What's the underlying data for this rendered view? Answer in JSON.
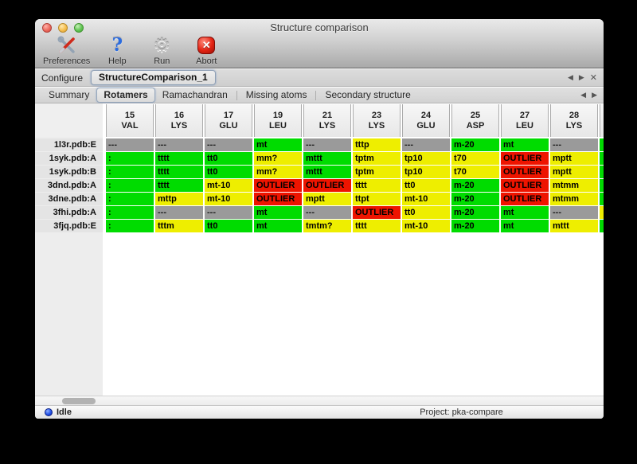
{
  "window": {
    "title": "Structure comparison"
  },
  "window_controls": [
    {
      "name": "close-button",
      "color": "red"
    },
    {
      "name": "minimize-button",
      "color": "yellow"
    },
    {
      "name": "zoom-button",
      "color": "green"
    }
  ],
  "toolbar": {
    "items": [
      {
        "label": "Preferences",
        "icon": "tools-icon"
      },
      {
        "label": "Help",
        "icon": "question-icon",
        "glyph": "?"
      },
      {
        "label": "Run",
        "icon": "gear-icon",
        "glyph": "⚙"
      },
      {
        "label": "Abort",
        "icon": "abort-icon",
        "glyph": "✕"
      }
    ]
  },
  "configure": {
    "label": "Configure",
    "value": "StructureComparison_1",
    "nav": {
      "prev": "◀",
      "next": "▶",
      "close": "✕"
    }
  },
  "tabs": {
    "items": [
      "Summary",
      "Rotamers",
      "Ramachandran",
      "Missing atoms",
      "Secondary structure"
    ],
    "active": "Rotamers",
    "nav": {
      "prev": "◀",
      "next": "▶"
    }
  },
  "table": {
    "columns": [
      {
        "num": "15",
        "res": "VAL"
      },
      {
        "num": "16",
        "res": "LYS"
      },
      {
        "num": "17",
        "res": "GLU"
      },
      {
        "num": "19",
        "res": "LEU"
      },
      {
        "num": "21",
        "res": "LYS"
      },
      {
        "num": "23",
        "res": "LYS"
      },
      {
        "num": "24",
        "res": "GLU"
      },
      {
        "num": "25",
        "res": "ASP"
      },
      {
        "num": "27",
        "res": "LEU"
      },
      {
        "num": "28",
        "res": "LYS"
      }
    ],
    "rows": [
      {
        "label": "1l3r.pdb:E",
        "cells": [
          {
            "t": "---",
            "s": "gray"
          },
          {
            "t": "---",
            "s": "gray"
          },
          {
            "t": "---",
            "s": "gray"
          },
          {
            "t": "mt",
            "s": "green"
          },
          {
            "t": "---",
            "s": "gray"
          },
          {
            "t": "tttp",
            "s": "yellow"
          },
          {
            "t": "---",
            "s": "gray"
          },
          {
            "t": "m-20",
            "s": "green"
          },
          {
            "t": "mt",
            "s": "green"
          },
          {
            "t": "---",
            "s": "gray"
          }
        ],
        "partial": "green"
      },
      {
        "label": "1syk.pdb:A",
        "cells": [
          {
            "t": ":",
            "s": "green"
          },
          {
            "t": "tttt",
            "s": "green"
          },
          {
            "t": "tt0",
            "s": "green"
          },
          {
            "t": "mm?",
            "s": "yellow"
          },
          {
            "t": "mttt",
            "s": "green"
          },
          {
            "t": "tptm",
            "s": "yellow"
          },
          {
            "t": "tp10",
            "s": "yellow"
          },
          {
            "t": "t70",
            "s": "yellow"
          },
          {
            "t": "OUTLIER",
            "s": "red"
          },
          {
            "t": "mptt",
            "s": "yellow"
          }
        ],
        "partial": "green"
      },
      {
        "label": "1syk.pdb:B",
        "cells": [
          {
            "t": ":",
            "s": "green"
          },
          {
            "t": "tttt",
            "s": "green"
          },
          {
            "t": "tt0",
            "s": "green"
          },
          {
            "t": "mm?",
            "s": "yellow"
          },
          {
            "t": "mttt",
            "s": "green"
          },
          {
            "t": "tptm",
            "s": "yellow"
          },
          {
            "t": "tp10",
            "s": "yellow"
          },
          {
            "t": "t70",
            "s": "yellow"
          },
          {
            "t": "OUTLIER",
            "s": "red"
          },
          {
            "t": "mptt",
            "s": "yellow"
          }
        ],
        "partial": "green"
      },
      {
        "label": "3dnd.pdb:A",
        "cells": [
          {
            "t": ":",
            "s": "green"
          },
          {
            "t": "tttt",
            "s": "green"
          },
          {
            "t": "mt-10",
            "s": "yellow"
          },
          {
            "t": "OUTLIER",
            "s": "red"
          },
          {
            "t": "OUTLIER",
            "s": "red"
          },
          {
            "t": "tttt",
            "s": "yellow"
          },
          {
            "t": "tt0",
            "s": "yellow"
          },
          {
            "t": "m-20",
            "s": "green"
          },
          {
            "t": "OUTLIER",
            "s": "red"
          },
          {
            "t": "mtmm",
            "s": "yellow"
          }
        ],
        "partial": "green"
      },
      {
        "label": "3dne.pdb:A",
        "cells": [
          {
            "t": ":",
            "s": "green"
          },
          {
            "t": "mttp",
            "s": "yellow"
          },
          {
            "t": "mt-10",
            "s": "yellow"
          },
          {
            "t": "OUTLIER",
            "s": "red"
          },
          {
            "t": "mptt",
            "s": "yellow"
          },
          {
            "t": "ttpt",
            "s": "yellow"
          },
          {
            "t": "mt-10",
            "s": "yellow"
          },
          {
            "t": "m-20",
            "s": "green"
          },
          {
            "t": "OUTLIER",
            "s": "red"
          },
          {
            "t": "mtmm",
            "s": "yellow"
          }
        ],
        "partial": "green"
      },
      {
        "label": "3fhi.pdb:A",
        "cells": [
          {
            "t": ":",
            "s": "green"
          },
          {
            "t": "---",
            "s": "gray"
          },
          {
            "t": "---",
            "s": "gray"
          },
          {
            "t": "mt",
            "s": "green"
          },
          {
            "t": "---",
            "s": "gray"
          },
          {
            "t": "OUTLIER",
            "s": "red"
          },
          {
            "t": "tt0",
            "s": "yellow"
          },
          {
            "t": "m-20",
            "s": "green"
          },
          {
            "t": "mt",
            "s": "green"
          },
          {
            "t": "---",
            "s": "gray"
          }
        ],
        "partial": "yellow"
      },
      {
        "label": "3fjq.pdb:E",
        "cells": [
          {
            "t": ":",
            "s": "green"
          },
          {
            "t": "tttm",
            "s": "yellow"
          },
          {
            "t": "tt0",
            "s": "green"
          },
          {
            "t": "mt",
            "s": "green"
          },
          {
            "t": "tmtm?",
            "s": "yellow"
          },
          {
            "t": "tttt",
            "s": "yellow"
          },
          {
            "t": "mt-10",
            "s": "yellow"
          },
          {
            "t": "m-20",
            "s": "green"
          },
          {
            "t": "mt",
            "s": "green"
          },
          {
            "t": "mttt",
            "s": "yellow"
          }
        ],
        "partial": "green"
      }
    ]
  },
  "statusbar": {
    "status": "Idle",
    "project": "Project: pka-compare"
  },
  "colors": {
    "cell_green": "#00dc00",
    "cell_yellow": "#eeee00",
    "cell_red": "#ee1400",
    "cell_gray": "#9a9a9a",
    "status_dot_blue": "#2453e8"
  }
}
